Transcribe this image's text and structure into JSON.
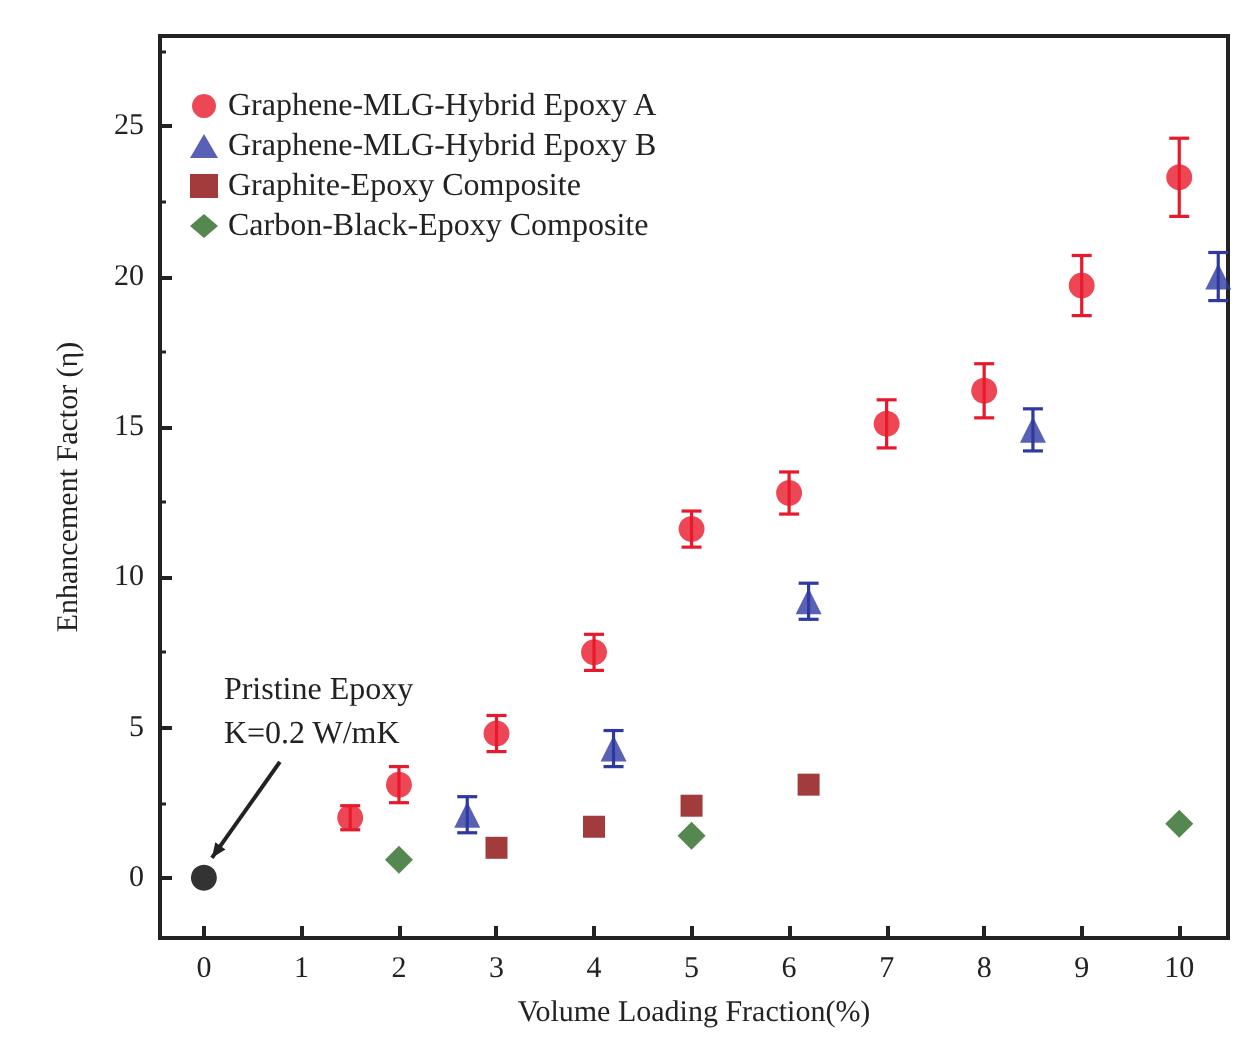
{
  "chart_data": {
    "type": "scatter",
    "xlabel": "Volume Loading Fraction(%)",
    "ylabel": "Enhancement Factor (η)",
    "xlim": [
      -0.45,
      10.5
    ],
    "xticks": [
      0,
      1,
      2,
      3,
      4,
      5,
      6,
      7,
      8,
      9,
      10
    ],
    "ylim": [
      -2,
      28
    ],
    "yticks": [
      0,
      5,
      10,
      15,
      20,
      25
    ],
    "grid": false,
    "legend": "top left",
    "series": [
      {
        "name": "Graphene-MLG-Hybrid Epoxy A",
        "color": "#e8192c",
        "marker": "circle",
        "x": [
          1.5,
          2,
          3,
          4,
          5,
          6,
          7,
          8,
          9,
          10
        ],
        "values": [
          2.0,
          3.1,
          4.8,
          7.5,
          11.6,
          12.8,
          15.1,
          16.2,
          19.7,
          23.3
        ],
        "errors": [
          0.4,
          0.6,
          0.6,
          0.6,
          0.6,
          0.7,
          0.8,
          0.9,
          1.0,
          1.3
        ]
      },
      {
        "name": "Graphene-MLG-Hybrid Epoxy B",
        "color": "#2e3aa0",
        "marker": "triangle",
        "x": [
          2.7,
          4.2,
          6.2,
          8.5,
          10.4
        ],
        "values": [
          2.1,
          4.3,
          9.2,
          14.9,
          20.0
        ],
        "errors": [
          0.6,
          0.6,
          0.6,
          0.7,
          0.8
        ]
      },
      {
        "name": "Graphite-Epoxy Composite",
        "color": "#8b0a0a",
        "marker": "square",
        "x": [
          3,
          4,
          5,
          6.2
        ],
        "values": [
          1.0,
          1.7,
          2.4,
          3.1
        ]
      },
      {
        "name": "Carbon-Black-Epoxy Composite",
        "color": "#2b6a24",
        "marker": "diamond",
        "x": [
          2,
          5,
          10
        ],
        "values": [
          0.6,
          1.4,
          1.8
        ]
      },
      {
        "color": "#000000",
        "marker": "circle",
        "x": [
          0
        ],
        "values": [
          0
        ]
      }
    ],
    "annotations": [
      "Pristine Epoxy\nK=0.2 W/mK"
    ]
  }
}
